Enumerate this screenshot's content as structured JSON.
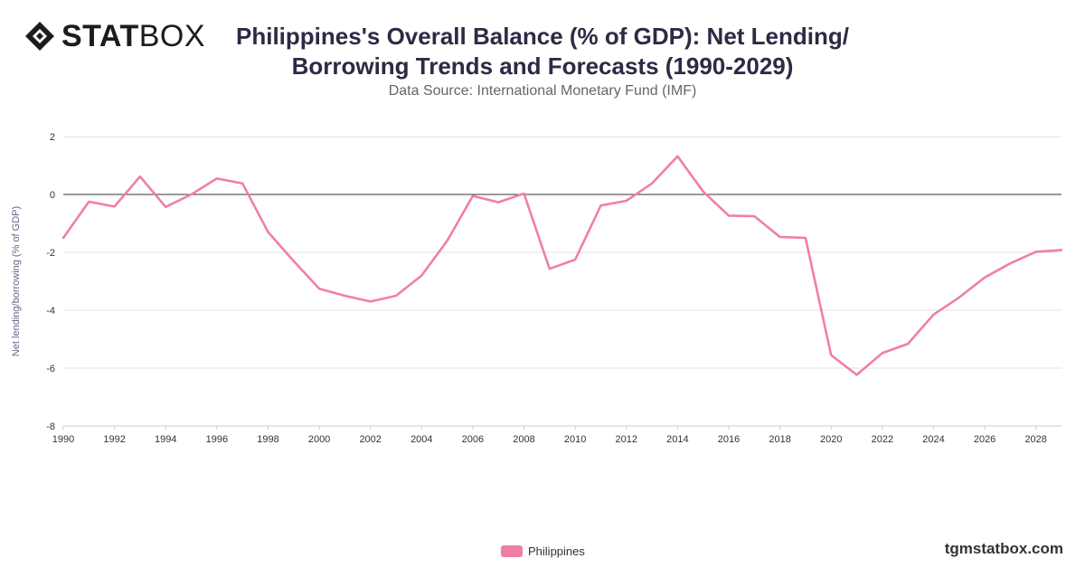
{
  "brand": {
    "logo_bold": "STAT",
    "logo_light": "BOX",
    "watermark": "tgmstatbox.com"
  },
  "header": {
    "title_line1": "Philippines's Overall Balance (% of GDP): Net Lending/",
    "title_line2": "Borrowing Trends and Forecasts (1990-2029)",
    "subtitle": "Data Source: International Monetary Fund (IMF)"
  },
  "legend": {
    "position": "bottom-center",
    "items": [
      {
        "label": "Philippines",
        "color": "#f07fa8"
      }
    ]
  },
  "chart_data": {
    "type": "line",
    "ylabel": "Net lending/borrowing (% of GDP)",
    "xlabel": "",
    "xlim": [
      1990,
      2029
    ],
    "ylim": [
      -8,
      2
    ],
    "yticks": [
      2,
      0,
      -2,
      -4,
      -6,
      -8
    ],
    "xticks": [
      1990,
      1992,
      1994,
      1996,
      1998,
      2000,
      2002,
      2004,
      2006,
      2008,
      2010,
      2012,
      2014,
      2016,
      2018,
      2020,
      2022,
      2024,
      2026,
      2028
    ],
    "grid": true,
    "zero_line": true,
    "series": [
      {
        "name": "Philippines",
        "color": "#f07fa8",
        "x": [
          1990,
          1991,
          1992,
          1993,
          1994,
          1995,
          1996,
          1997,
          1998,
          1999,
          2000,
          2001,
          2002,
          2003,
          2004,
          2005,
          2006,
          2007,
          2008,
          2009,
          2010,
          2011,
          2012,
          2013,
          2014,
          2015,
          2016,
          2017,
          2018,
          2019,
          2020,
          2021,
          2022,
          2023,
          2024,
          2025,
          2026,
          2027,
          2028,
          2029
        ],
        "values": [
          -1.5,
          -0.25,
          -0.42,
          0.62,
          -0.43,
          0.0,
          0.55,
          0.38,
          -1.3,
          -2.3,
          -3.26,
          -3.5,
          -3.7,
          -3.5,
          -2.8,
          -1.6,
          -0.05,
          -0.27,
          0.03,
          -2.57,
          -2.25,
          -0.38,
          -0.22,
          0.38,
          1.32,
          0.1,
          -0.73,
          -0.75,
          -1.47,
          -1.5,
          -5.55,
          -6.23,
          -5.48,
          -5.16,
          -4.15,
          -3.56,
          -2.87,
          -2.38,
          -1.98,
          -1.92
        ]
      }
    ]
  }
}
